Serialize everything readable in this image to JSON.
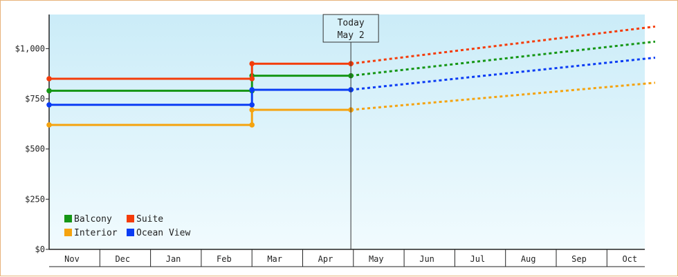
{
  "chart_data": {
    "type": "line",
    "title": "",
    "xlabel": "",
    "ylabel": "",
    "ylim": [
      0,
      1170
    ],
    "y_ticks": [
      {
        "value": 0,
        "label": "$0"
      },
      {
        "value": 250,
        "label": "$250"
      },
      {
        "value": 500,
        "label": "$500"
      },
      {
        "value": 750,
        "label": "$750"
      },
      {
        "value": 1000,
        "label": "$1,000"
      }
    ],
    "months": [
      "Nov",
      "Dec",
      "Jan",
      "Feb",
      "Mar",
      "Apr",
      "May",
      "Jun",
      "Jul",
      "Aug",
      "Sep",
      "Oct"
    ],
    "x_domain": [
      0,
      12
    ],
    "today": {
      "line1": "Today",
      "line2": "May 2",
      "x": 5.95
    },
    "background_gradient": [
      "#cbecf8",
      "#f1fbfe"
    ],
    "series": [
      {
        "name": "Balcony",
        "color": "#159615",
        "history": [
          [
            0,
            790
          ],
          [
            4.0,
            790
          ],
          [
            4.0,
            865
          ],
          [
            5.95,
            865
          ]
        ],
        "forecast_end": [
          11.95,
          1035
        ]
      },
      {
        "name": "Suite",
        "color": "#f43c0a",
        "history": [
          [
            0,
            850
          ],
          [
            4.0,
            850
          ],
          [
            4.0,
            925
          ],
          [
            5.95,
            925
          ]
        ],
        "forecast_end": [
          11.95,
          1110
        ]
      },
      {
        "name": "Interior",
        "color": "#f5a30e",
        "history": [
          [
            0,
            620
          ],
          [
            4.0,
            620
          ],
          [
            4.0,
            695
          ],
          [
            5.95,
            695
          ]
        ],
        "forecast_end": [
          11.95,
          830
        ]
      },
      {
        "name": "Ocean View",
        "color": "#0a3cf4",
        "history": [
          [
            0,
            720
          ],
          [
            4.0,
            720
          ],
          [
            4.0,
            795
          ],
          [
            5.95,
            795
          ]
        ],
        "forecast_end": [
          11.95,
          955
        ]
      }
    ],
    "legend_order": [
      "Balcony",
      "Suite",
      "Interior",
      "Ocean View"
    ],
    "grid": false,
    "legend_position": "bottom-left"
  }
}
